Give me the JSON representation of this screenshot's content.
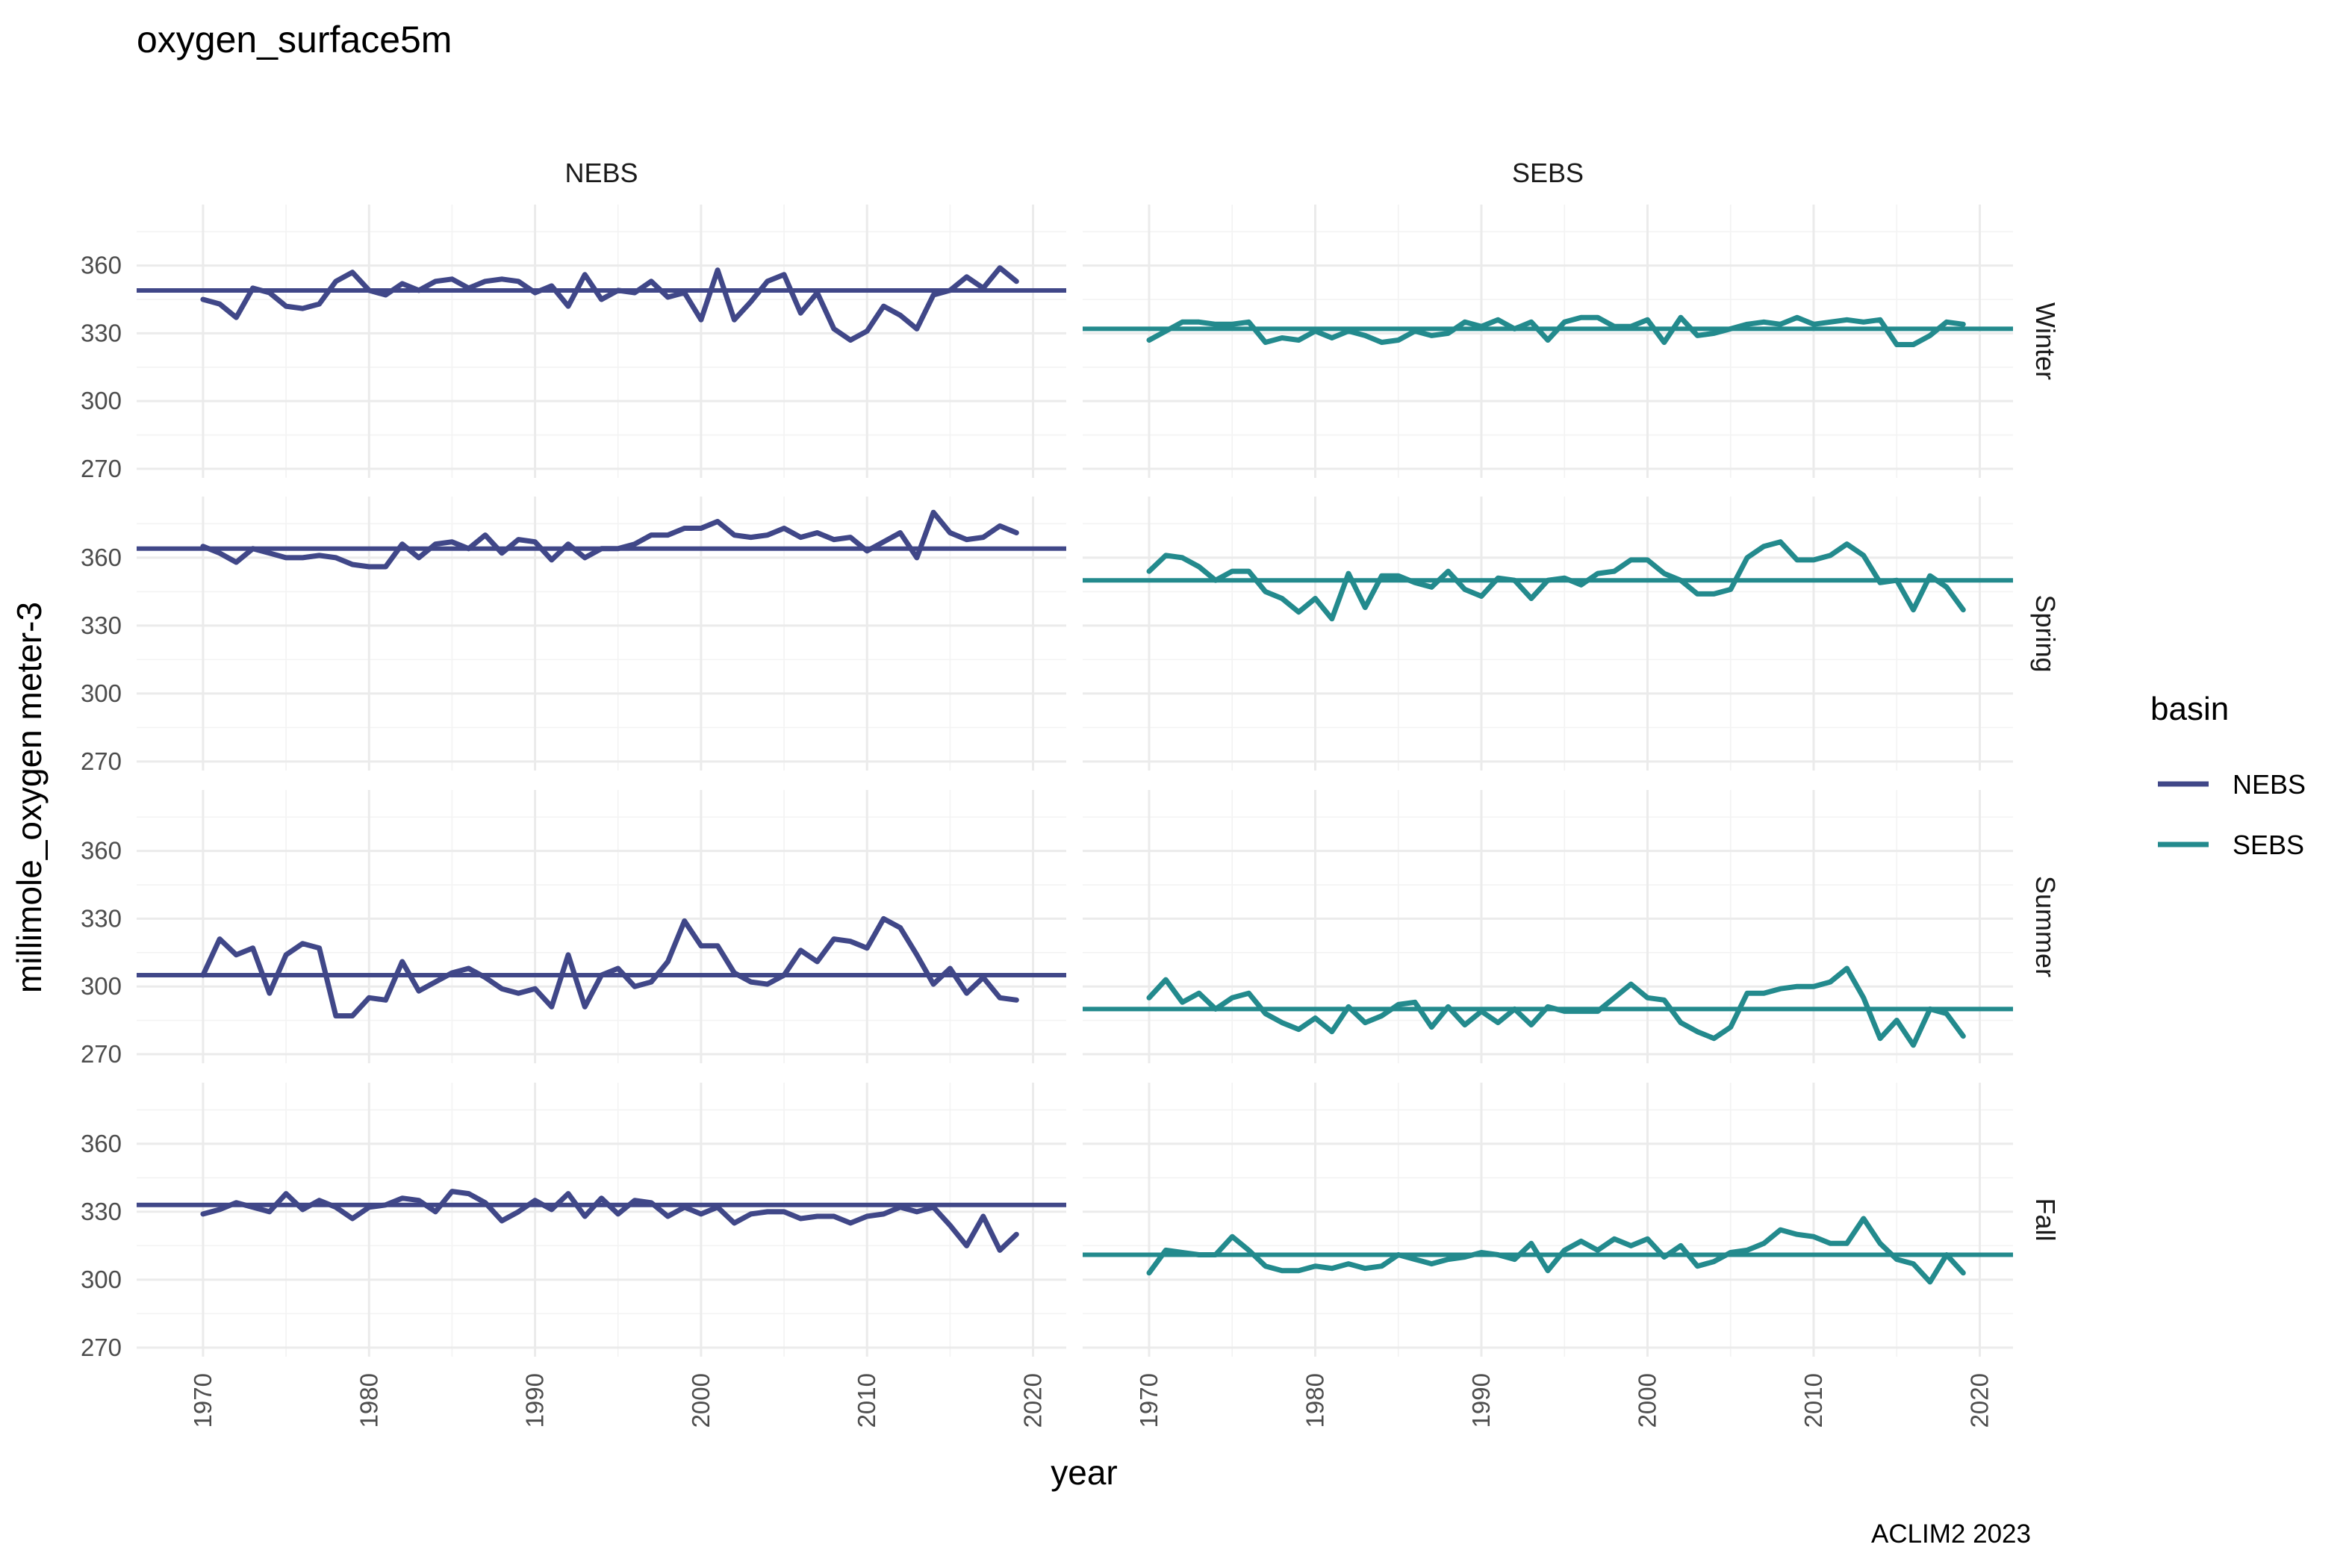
{
  "chart_data": {
    "type": "line",
    "title": "oxygen_surface5m",
    "xlabel": "year",
    "ylabel": "millimole_oxygen meter-3",
    "caption": "ACLIM2 2023",
    "legend": {
      "title": "basin",
      "placement": "right",
      "entries": [
        {
          "name": "NEBS",
          "color": "#404788"
        },
        {
          "name": "SEBS",
          "color": "#238A8D"
        }
      ]
    },
    "x_ticks": [
      1970,
      1980,
      1990,
      2000,
      2010,
      2020
    ],
    "y_ticks": [
      270,
      300,
      330,
      360
    ],
    "xlim": [
      1966,
      2022
    ],
    "ylim": [
      266,
      387
    ],
    "grid": true,
    "columns": [
      "NEBS",
      "SEBS"
    ],
    "rows": [
      "Winter",
      "Spring",
      "Summer",
      "Fall"
    ],
    "x_start": 1970,
    "panels": [
      {
        "column": "NEBS",
        "row": "Winter",
        "color": "#404788",
        "mean": 349,
        "values": [
          345,
          343,
          337,
          350,
          348,
          342,
          341,
          343,
          353,
          357,
          349,
          347,
          352,
          349,
          353,
          354,
          350,
          353,
          354,
          353,
          348,
          351,
          342,
          356,
          345,
          349,
          348,
          353,
          346,
          348,
          336,
          358,
          336,
          344,
          353,
          356,
          339,
          348,
          332,
          327,
          331,
          342,
          338,
          332,
          347,
          349,
          355,
          350,
          359,
          353
        ]
      },
      {
        "column": "SEBS",
        "row": "Winter",
        "color": "#238A8D",
        "mean": 332,
        "values": [
          327,
          331,
          335,
          335,
          334,
          334,
          335,
          326,
          328,
          327,
          331,
          328,
          331,
          329,
          326,
          327,
          331,
          329,
          330,
          335,
          333,
          336,
          332,
          335,
          327,
          335,
          337,
          337,
          333,
          333,
          336,
          326,
          337,
          329,
          330,
          332,
          334,
          335,
          334,
          337,
          334,
          335,
          336,
          335,
          336,
          325,
          325,
          329,
          335,
          334
        ]
      },
      {
        "column": "NEBS",
        "row": "Spring",
        "color": "#404788",
        "mean": 364,
        "values": [
          365,
          362,
          358,
          364,
          362,
          360,
          360,
          361,
          360,
          357,
          356,
          356,
          366,
          360,
          366,
          367,
          364,
          370,
          362,
          368,
          367,
          359,
          366,
          360,
          364,
          364,
          366,
          370,
          370,
          373,
          373,
          376,
          370,
          369,
          370,
          373,
          369,
          371,
          368,
          369,
          363,
          367,
          371,
          360,
          380,
          371,
          368,
          369,
          374,
          371
        ]
      },
      {
        "column": "SEBS",
        "row": "Spring",
        "color": "#238A8D",
        "mean": 350,
        "values": [
          354,
          361,
          360,
          356,
          350,
          354,
          354,
          345,
          342,
          336,
          342,
          333,
          353,
          338,
          352,
          352,
          349,
          347,
          354,
          346,
          343,
          351,
          350,
          342,
          350,
          351,
          348,
          353,
          354,
          359,
          359,
          353,
          350,
          344,
          344,
          346,
          360,
          365,
          367,
          359,
          359,
          361,
          366,
          361,
          349,
          350,
          337,
          352,
          347,
          337
        ]
      },
      {
        "column": "NEBS",
        "row": "Summer",
        "color": "#404788",
        "mean": 305,
        "values": [
          305,
          321,
          314,
          317,
          297,
          314,
          319,
          317,
          287,
          287,
          295,
          294,
          311,
          298,
          302,
          306,
          308,
          304,
          299,
          297,
          299,
          291,
          314,
          291,
          305,
          308,
          300,
          302,
          311,
          329,
          318,
          318,
          306,
          302,
          301,
          305,
          316,
          311,
          321,
          320,
          317,
          330,
          326,
          314,
          301,
          308,
          297,
          304,
          295,
          294
        ]
      },
      {
        "column": "SEBS",
        "row": "Summer",
        "color": "#238A8D",
        "mean": 290,
        "values": [
          295,
          303,
          293,
          297,
          290,
          295,
          297,
          288,
          284,
          281,
          286,
          280,
          291,
          284,
          287,
          292,
          293,
          282,
          291,
          283,
          289,
          284,
          290,
          283,
          291,
          289,
          289,
          289,
          295,
          301,
          295,
          294,
          284,
          280,
          277,
          282,
          297,
          297,
          299,
          300,
          300,
          302,
          308,
          295,
          277,
          285,
          274,
          290,
          288,
          278
        ]
      },
      {
        "column": "NEBS",
        "row": "Fall",
        "color": "#404788",
        "mean": 333,
        "values": [
          329,
          331,
          334,
          332,
          330,
          338,
          331,
          335,
          332,
          327,
          332,
          333,
          336,
          335,
          330,
          339,
          338,
          334,
          326,
          330,
          335,
          331,
          338,
          328,
          336,
          329,
          335,
          334,
          328,
          332,
          329,
          332,
          325,
          329,
          330,
          330,
          327,
          328,
          328,
          325,
          328,
          329,
          332,
          330,
          332,
          324,
          315,
          328,
          313,
          320
        ]
      },
      {
        "column": "SEBS",
        "row": "Fall",
        "color": "#238A8D",
        "mean": 311,
        "values": [
          303,
          313,
          312,
          311,
          311,
          319,
          313,
          306,
          304,
          304,
          306,
          305,
          307,
          305,
          306,
          311,
          309,
          307,
          309,
          310,
          312,
          311,
          309,
          316,
          304,
          313,
          317,
          313,
          318,
          315,
          318,
          310,
          315,
          306,
          308,
          312,
          313,
          316,
          322,
          320,
          319,
          316,
          316,
          327,
          316,
          309,
          307,
          299,
          311,
          303
        ]
      }
    ]
  }
}
